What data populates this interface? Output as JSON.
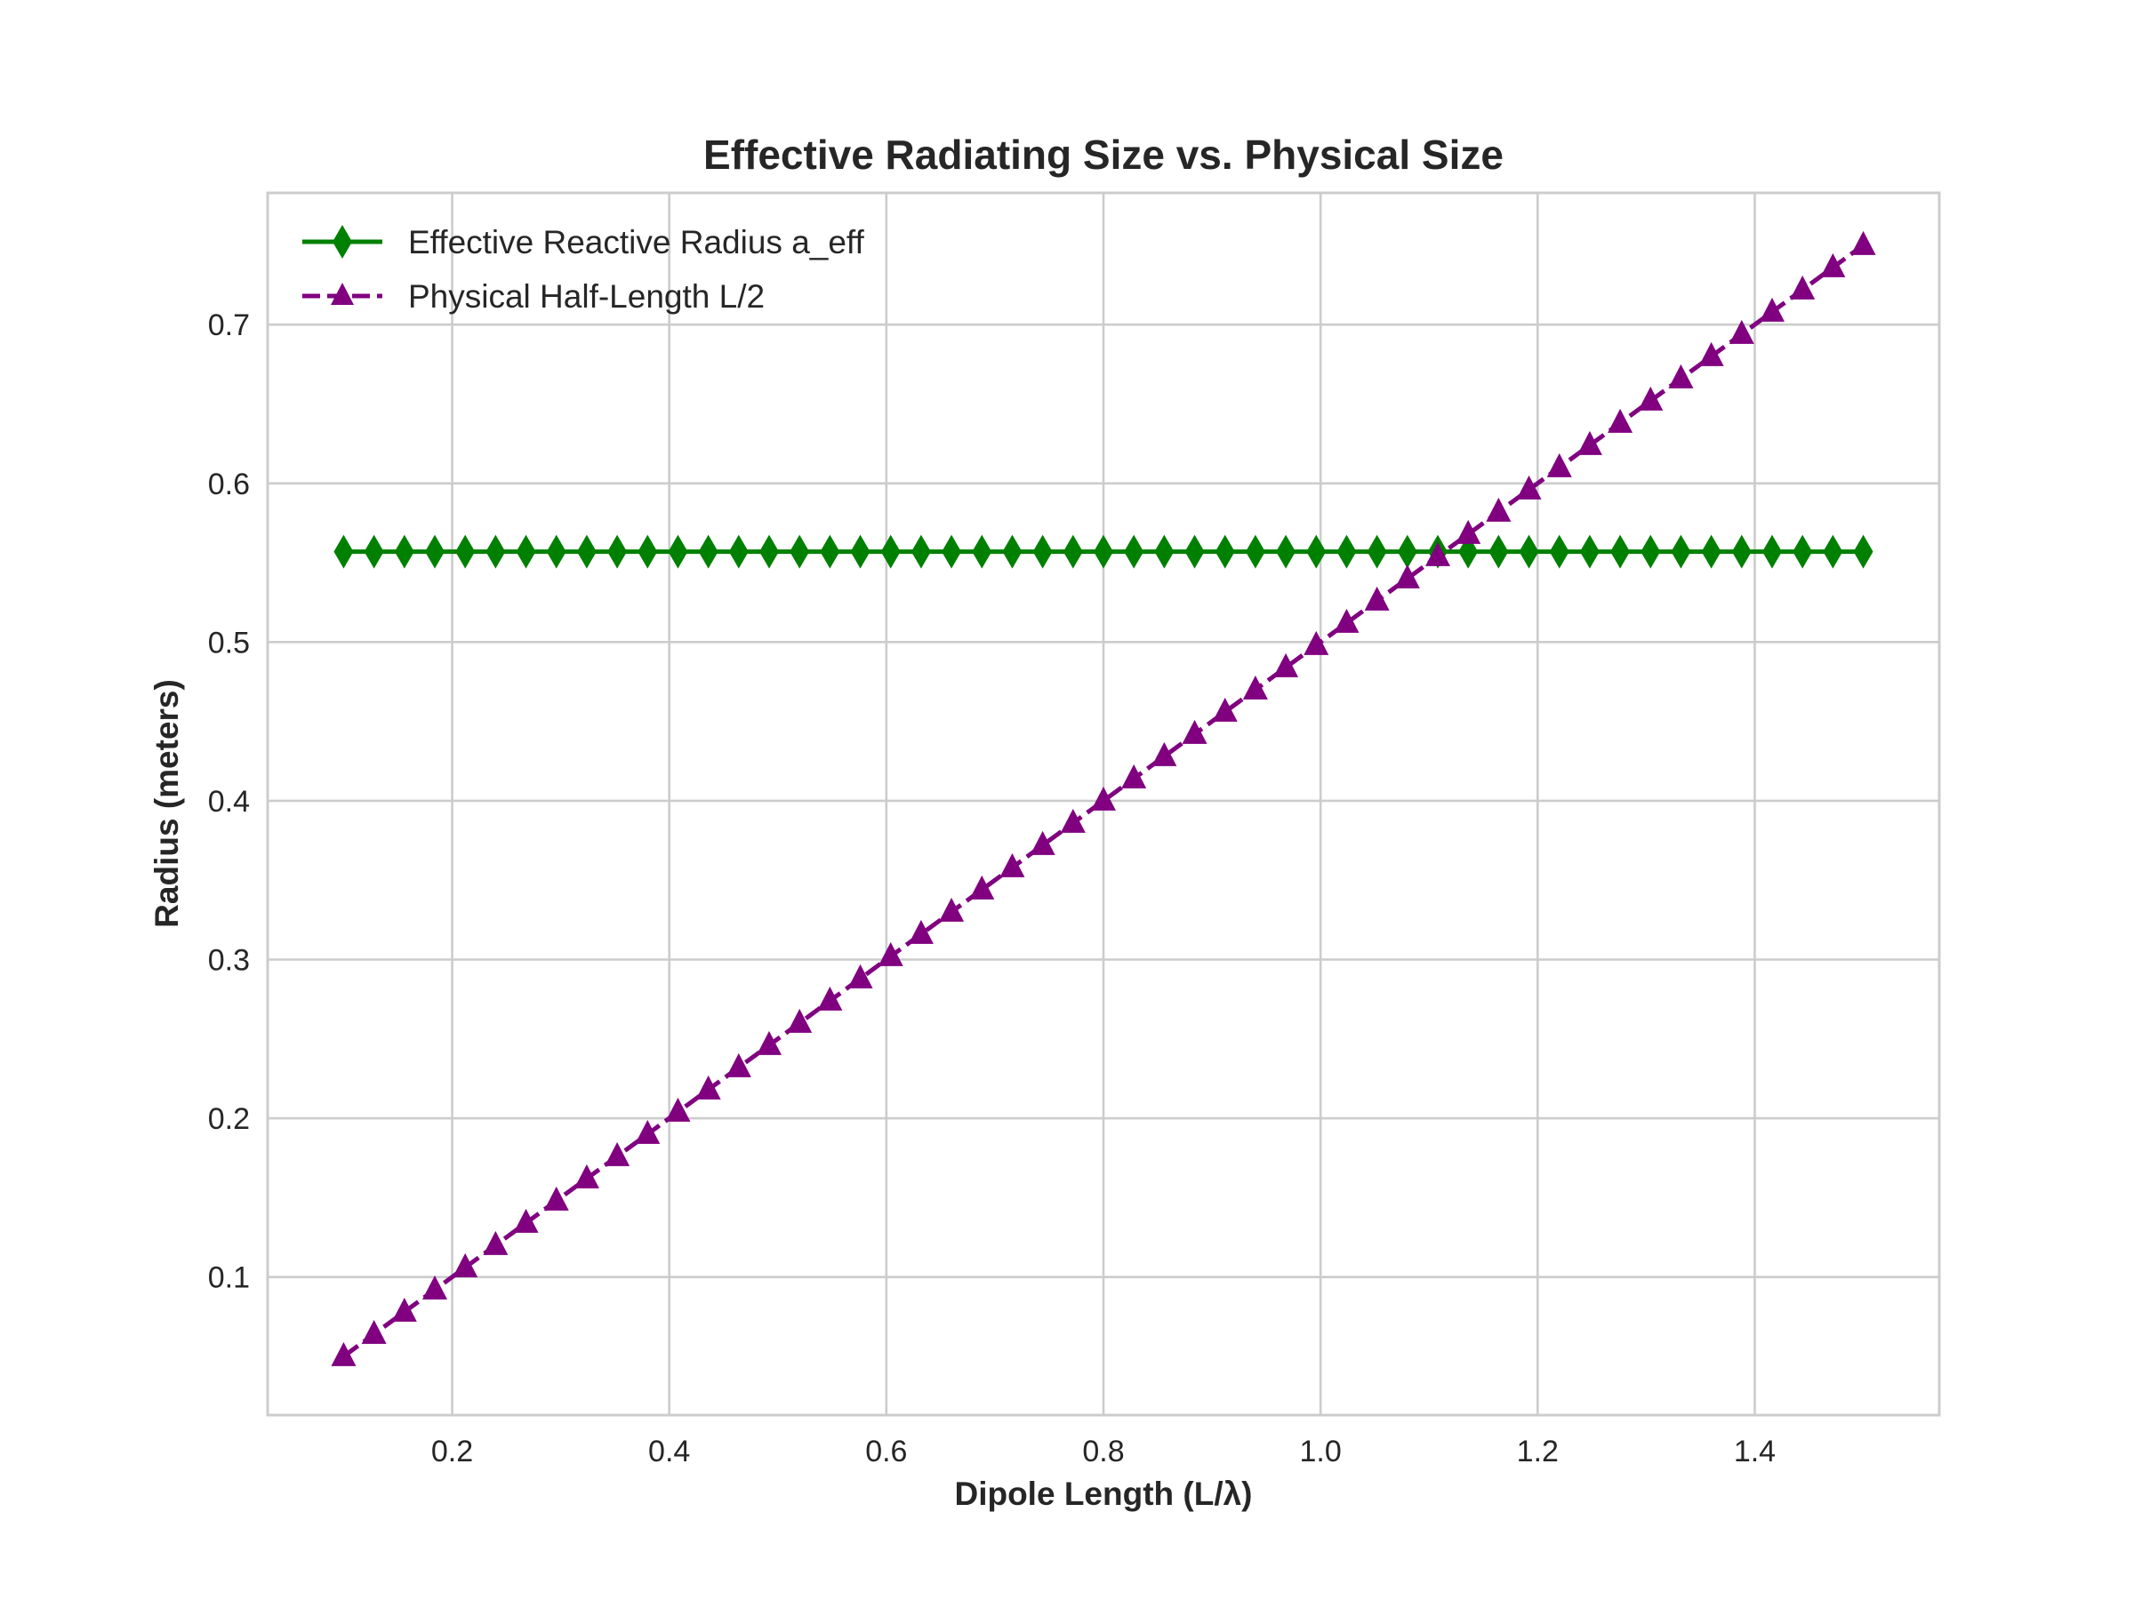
{
  "chart_data": {
    "type": "line",
    "title": "Effective Radiating Size vs. Physical Size",
    "xlabel": "Dipole Length (L/λ)",
    "ylabel": "Radius (meters)",
    "xlim": [
      0.03,
      1.57
    ],
    "ylim": [
      0.013,
      0.783
    ],
    "xticks": [
      0.2,
      0.4,
      0.6,
      0.8,
      1.0,
      1.2,
      1.4
    ],
    "xtick_labels": [
      "0.2",
      "0.4",
      "0.6",
      "0.8",
      "1.0",
      "1.2",
      "1.4"
    ],
    "yticks": [
      0.1,
      0.2,
      0.3,
      0.4,
      0.5,
      0.6,
      0.7
    ],
    "ytick_labels": [
      "0.1",
      "0.2",
      "0.3",
      "0.4",
      "0.5",
      "0.6",
      "0.7"
    ],
    "grid": true,
    "legend_position": "top-left",
    "x": {
      "start": 0.1,
      "stop": 1.5,
      "count": 51
    },
    "series": [
      {
        "name": "Effective Reactive Radius a_eff",
        "color": "#008000",
        "marker": "diamond",
        "line_style": "solid",
        "formula": "constant",
        "value": 0.557
      },
      {
        "name": "Physical Half-Length L/2",
        "color": "#800080",
        "marker": "triangle",
        "line_style": "dashed",
        "formula": "y = x / 2"
      }
    ]
  }
}
